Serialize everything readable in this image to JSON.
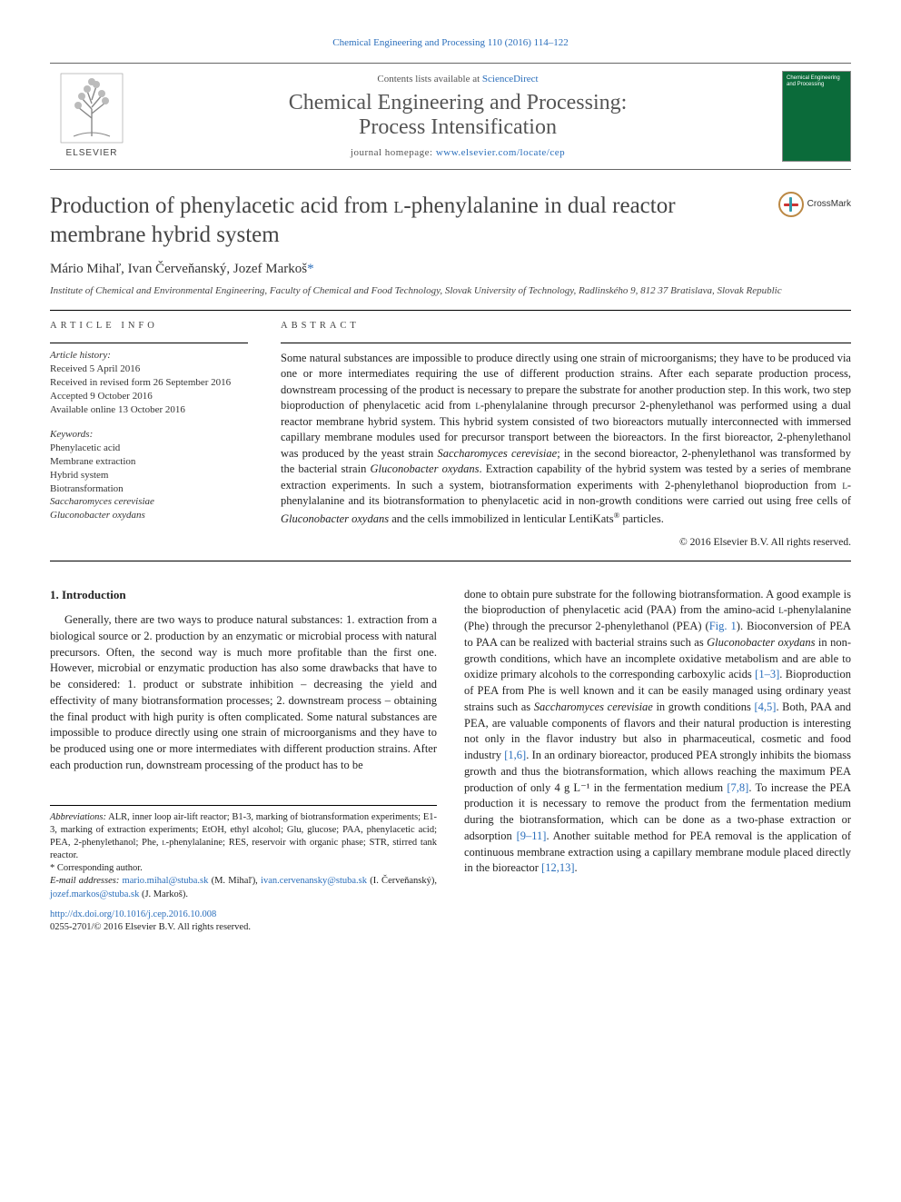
{
  "top_citation": "Chemical Engineering and Processing 110 (2016) 114–122",
  "mast": {
    "contents_prefix": "Contents lists available at ",
    "sciencedirect": "ScienceDirect",
    "journal_name_l1": "Chemical Engineering and Processing:",
    "journal_name_l2": "Process Intensification",
    "homepage_prefix": "journal homepage: ",
    "homepage_url": "www.elsevier.com/locate/cep",
    "publisher": "ELSEVIER",
    "cover_text": "Chemical Engineering and Processing"
  },
  "article": {
    "title_before_sc": "Production of phenylacetic acid from ",
    "title_sc": "l",
    "title_after_sc": "-phenylalanine in dual reactor membrane hybrid system",
    "authors": "Mário Mihaľ, Ivan Červeňanský, Jozef Markoš",
    "corr_mark": "*",
    "affiliation": "Institute of Chemical and Environmental Engineering, Faculty of Chemical and Food Technology, Slovak University of Technology, Radlinského 9, 812 37 Bratislava, Slovak Republic",
    "crossmark": "CrossMark"
  },
  "info": {
    "label": "ARTICLE INFO",
    "history_head": "Article history:",
    "history": [
      "Received 5 April 2016",
      "Received in revised form 26 September 2016",
      "Accepted 9 October 2016",
      "Available online 13 October 2016"
    ],
    "keywords_head": "Keywords:",
    "keywords": [
      "Phenylacetic acid",
      "Membrane extraction",
      "Hybrid system",
      "Biotransformation",
      "Saccharomyces cerevisiae",
      "Gluconobacter oxydans"
    ]
  },
  "abstract": {
    "label": "ABSTRACT",
    "text_parts": [
      "Some natural substances are impossible to produce directly using one strain of microorganisms; they have to be produced via one or more intermediates requiring the use of different production strains. After each separate production process, downstream processing of the product is necessary to prepare the substrate for another production step. In this work, two step bioproduction of phenylacetic acid from ",
      "l",
      "-phenylalanine through precursor 2-phenylethanol was performed using a dual reactor membrane hybrid system. This hybrid system consisted of two bioreactors mutually interconnected with immersed capillary membrane modules used for precursor transport between the bioreactors. In the first bioreactor, 2-phenylethanol was produced by the yeast strain ",
      "Saccharomyces cerevisiae",
      "; in the second bioreactor, 2-phenylethanol was transformed by the bacterial strain ",
      "Gluconobacter oxydans",
      ". Extraction capability of the hybrid system was tested by a series of membrane extraction experiments. In such a system, biotransformation experiments with 2-phenylethanol bioproduction from ",
      "l",
      "-phenylalanine and its biotransformation to phenylacetic acid in non-growth conditions were carried out using free cells of ",
      "Gluconobacter oxydans",
      " and the cells immobilized in lenticular LentiKats",
      "®",
      " particles."
    ],
    "copyright": "© 2016 Elsevier B.V. All rights reserved."
  },
  "body": {
    "section_head": "1. Introduction",
    "left_text": "Generally, there are two ways to produce natural substances: 1. extraction from a biological source or 2. production by an enzymatic or microbial process with natural precursors. Often, the second way is much more profitable than the first one. However, microbial or enzymatic production has also some drawbacks that have to be considered: 1. product or substrate inhibition – decreasing the yield and effectivity of many biotransformation processes; 2. downstream process – obtaining the final product with high purity is often complicated. Some natural substances are impossible to produce directly using one strain of microorganisms and they have to be produced using one or more intermediates with different production strains. After each production run, downstream processing of the product has to be",
    "right_parts": [
      "done to obtain pure substrate for the following biotransformation. A good example is the bioproduction of phenylacetic acid (PAA) from the amino-acid ",
      {
        "sc": "l"
      },
      "-phenylalanine (Phe) through the precursor 2-phenylethanol (PEA) (",
      {
        "ref": "Fig. 1"
      },
      "). Bioconversion of PEA to PAA can be realized with bacterial strains such as ",
      {
        "ital": "Gluconobacter oxydans"
      },
      " in non-growth conditions, which have an incomplete oxidative metabolism and are able to oxidize primary alcohols to the corresponding carboxylic acids ",
      {
        "ref": "[1–3]"
      },
      ". Bioproduction of PEA from Phe is well known and it can be easily managed using ordinary yeast strains such as ",
      {
        "ital": "Saccharomyces cerevisiae"
      },
      " in growth conditions ",
      {
        "ref": "[4,5]"
      },
      ". Both, PAA and PEA, are valuable components of flavors and their natural production is interesting not only in the flavor industry but also in pharmaceutical, cosmetic and food industry ",
      {
        "ref": "[1,6]"
      },
      ". In an ordinary bioreactor, produced PEA strongly inhibits the biomass growth and thus the biotransformation, which allows reaching the maximum PEA production of only 4 g L⁻¹ in the fermentation medium ",
      {
        "ref": "[7,8]"
      },
      ". To increase the PEA production it is necessary to remove the product from the fermentation medium during the biotransformation, which can be done as a two-phase extraction or adsorption ",
      {
        "ref": "[9–11]"
      },
      ". Another suitable method for PEA removal is the application of continuous membrane extraction using a capillary membrane module placed directly in the bioreactor ",
      {
        "ref": "[12,13]"
      },
      "."
    ]
  },
  "footnotes": {
    "abbrev_label": "Abbreviations:",
    "abbrev_text": " ALR, inner loop air-lift reactor; B1-3, marking of biotransformation experiments; E1-3, marking of extraction experiments; EtOH, ethyl alcohol; Glu, glucose; PAA, phenylacetic acid; PEA, 2-phenylethanol; Phe, ",
    "abbrev_sc": "l",
    "abbrev_text2": "-phenylalanine; RES, reservoir with organic phase; STR, stirred tank reactor.",
    "corr_label": "* Corresponding author.",
    "email_label": "E-mail addresses:",
    "emails": [
      {
        "addr": "mario.mihal@stuba.sk",
        "who": " (M. Mihaľ), "
      },
      {
        "addr": "ivan.cervenansky@stuba.sk",
        "who": " (I. Červeňanský), "
      },
      {
        "addr": "jozef.markos@stuba.sk",
        "who": " (J. Markoš)."
      }
    ],
    "doi": "http://dx.doi.org/10.1016/j.cep.2016.10.008",
    "issn_line": "0255-2701/© 2016 Elsevier B.V. All rights reserved."
  },
  "colors": {
    "link": "#2a6ebb",
    "text": "#222222",
    "muted": "#555555",
    "rule": "#000000",
    "cover": "#0b6b3a"
  }
}
